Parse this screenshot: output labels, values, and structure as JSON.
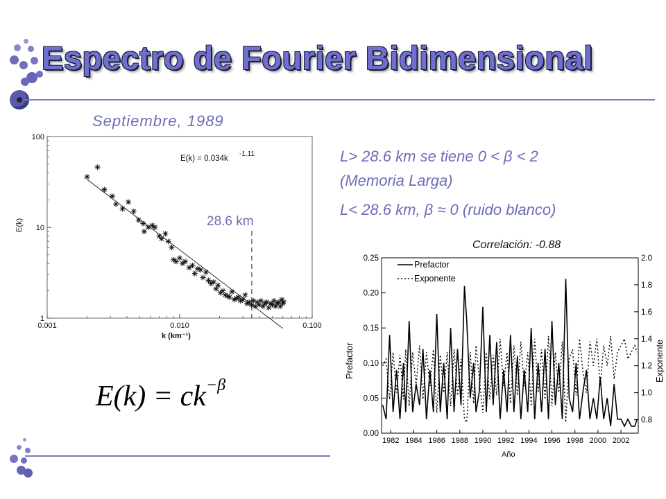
{
  "slide": {
    "title": "Espectro de Fourier Bidimensional",
    "subtitle": "Septiembre, 1989",
    "note1_a": "L> 28.6 km se tiene  0 < β < 2",
    "note1_b": "(Memoria Larga)",
    "note2": "L< 28.6 km, β ≈ 0 (ruido blanco)",
    "correlation": "Correlación: -0.88",
    "formula_main": "E(k) = ck",
    "formula_exp": "−β",
    "colors": {
      "title": "#6f6fd0",
      "accent_text": "#6c6cb8",
      "rule": "#7a7ab8"
    }
  },
  "chart_data": [
    {
      "type": "scatter",
      "scale": "log-log",
      "xlabel": "k (km⁻¹)",
      "ylabel": "E(k)",
      "xlim": [
        0.001,
        0.1
      ],
      "ylim": [
        1,
        100
      ],
      "x_ticks": [
        "0.001",
        "0.010",
        "0.100"
      ],
      "y_ticks": [
        "1",
        "10",
        "100"
      ],
      "fit_label": "E(k) = 0.034k",
      "fit_exponent": "-1.11",
      "fit": {
        "c": 0.034,
        "beta": 1.11
      },
      "cutoff_label": "28.6 km",
      "cutoff_k": 0.035,
      "points": [
        [
          0.002,
          36
        ],
        [
          0.0024,
          46
        ],
        [
          0.0027,
          26
        ],
        [
          0.0031,
          22
        ],
        [
          0.0033,
          18
        ],
        [
          0.0037,
          16
        ],
        [
          0.0041,
          19
        ],
        [
          0.0045,
          15
        ],
        [
          0.0049,
          12
        ],
        [
          0.0053,
          11
        ],
        [
          0.0054,
          9
        ],
        [
          0.0058,
          10
        ],
        [
          0.0062,
          10.5
        ],
        [
          0.0065,
          10
        ],
        [
          0.007,
          8
        ],
        [
          0.0073,
          7.5
        ],
        [
          0.0078,
          8.5
        ],
        [
          0.0082,
          7
        ],
        [
          0.0087,
          6
        ],
        [
          0.009,
          4.4
        ],
        [
          0.0094,
          4.2
        ],
        [
          0.01,
          4.6
        ],
        [
          0.0105,
          4.0
        ],
        [
          0.011,
          4.2
        ],
        [
          0.0118,
          3.6
        ],
        [
          0.0125,
          3.8
        ],
        [
          0.013,
          3.1
        ],
        [
          0.0137,
          3.5
        ],
        [
          0.0144,
          3.4
        ],
        [
          0.015,
          2.8
        ],
        [
          0.0158,
          3.2
        ],
        [
          0.0165,
          2.6
        ],
        [
          0.0172,
          2.4
        ],
        [
          0.018,
          2.5
        ],
        [
          0.0188,
          2.1
        ],
        [
          0.0195,
          2.3
        ],
        [
          0.0203,
          1.9
        ],
        [
          0.0212,
          2.0
        ],
        [
          0.022,
          1.8
        ],
        [
          0.023,
          1.75
        ],
        [
          0.0238,
          1.7
        ],
        [
          0.0248,
          1.95
        ],
        [
          0.0258,
          1.6
        ],
        [
          0.0268,
          1.65
        ],
        [
          0.0278,
          1.7
        ],
        [
          0.0288,
          1.55
        ],
        [
          0.03,
          1.6
        ],
        [
          0.0312,
          1.8
        ],
        [
          0.0322,
          1.45
        ],
        [
          0.0335,
          1.5
        ],
        [
          0.0348,
          1.4
        ],
        [
          0.036,
          1.55
        ],
        [
          0.0372,
          1.35
        ],
        [
          0.0385,
          1.5
        ],
        [
          0.0398,
          1.4
        ],
        [
          0.041,
          1.55
        ],
        [
          0.0425,
          1.35
        ],
        [
          0.044,
          1.45
        ],
        [
          0.0455,
          1.5
        ],
        [
          0.047,
          1.3
        ],
        [
          0.0485,
          1.45
        ],
        [
          0.05,
          1.4
        ],
        [
          0.0515,
          1.55
        ],
        [
          0.053,
          1.35
        ],
        [
          0.0545,
          1.45
        ],
        [
          0.056,
          1.5
        ],
        [
          0.0575,
          1.35
        ],
        [
          0.059,
          1.6
        ],
        [
          0.06,
          1.45
        ],
        [
          0.061,
          1.5
        ]
      ]
    },
    {
      "type": "line",
      "xlabel": "Año",
      "ylabel": "Prefactor",
      "y2label": "Exponente",
      "xlim": [
        1981.2,
        2003.5
      ],
      "ylim": [
        0,
        0.25
      ],
      "y2lim": [
        0.7,
        2.0
      ],
      "x_ticks": [
        "1982",
        "1984",
        "1986",
        "1988",
        "1990",
        "1992",
        "1994",
        "1996",
        "1998",
        "2000",
        "2002"
      ],
      "y_ticks": [
        "0.00",
        "0.05",
        "0.10",
        "0.15",
        "0.20",
        "0.25"
      ],
      "y2_ticks": [
        "0.8",
        "1.0",
        "1.2",
        "1.4",
        "1.6",
        "1.8",
        "2.0"
      ],
      "series": [
        {
          "name": "Prefactor",
          "axis": "left",
          "x": [
            1981.3,
            1981.6,
            1981.9,
            1982.2,
            1982.5,
            1982.8,
            1983.1,
            1983.3,
            1983.6,
            1983.9,
            1984.2,
            1984.5,
            1984.8,
            1985.1,
            1985.4,
            1985.7,
            1986.0,
            1986.3,
            1986.6,
            1986.9,
            1987.2,
            1987.5,
            1987.8,
            1988.1,
            1988.4,
            1988.6,
            1988.9,
            1989.2,
            1989.4,
            1989.7,
            1990.0,
            1990.3,
            1990.6,
            1990.9,
            1991.2,
            1991.5,
            1991.8,
            1992.1,
            1992.4,
            1992.7,
            1993.0,
            1993.3,
            1993.6,
            1993.9,
            1994.2,
            1994.5,
            1994.8,
            1995.1,
            1995.4,
            1995.7,
            1996.0,
            1996.3,
            1996.6,
            1996.9,
            1997.2,
            1997.5,
            1997.8,
            1998.1,
            1998.4,
            1998.7,
            1999.0,
            1999.3,
            1999.6,
            1999.9,
            2000.2,
            2000.5,
            2000.8,
            2001.1,
            2001.4,
            2001.7,
            2002.0,
            2002.3,
            2002.6,
            2002.9,
            2003.2,
            2003.4
          ],
          "values": [
            0.04,
            0.02,
            0.14,
            0.03,
            0.09,
            0.02,
            0.1,
            0.03,
            0.16,
            0.03,
            0.07,
            0.04,
            0.12,
            0.02,
            0.09,
            0.03,
            0.17,
            0.03,
            0.1,
            0.02,
            0.15,
            0.03,
            0.12,
            0.04,
            0.21,
            0.16,
            0.05,
            0.1,
            0.03,
            0.06,
            0.18,
            0.03,
            0.14,
            0.04,
            0.13,
            0.02,
            0.09,
            0.03,
            0.14,
            0.03,
            0.11,
            0.02,
            0.09,
            0.03,
            0.15,
            0.02,
            0.1,
            0.03,
            0.12,
            0.02,
            0.16,
            0.04,
            0.1,
            0.02,
            0.22,
            0.05,
            0.03,
            0.1,
            0.02,
            0.06,
            0.09,
            0.02,
            0.05,
            0.02,
            0.08,
            0.02,
            0.05,
            0.01,
            0.07,
            0.02,
            0.02,
            0.01,
            0.02,
            0.01,
            0.01,
            0.02
          ]
        },
        {
          "name": "Exponente",
          "axis": "right",
          "x": [
            1981.3,
            1981.6,
            1981.9,
            1982.2,
            1982.5,
            1982.8,
            1983.1,
            1983.3,
            1983.6,
            1983.9,
            1984.2,
            1984.5,
            1984.8,
            1985.1,
            1985.4,
            1985.7,
            1986.0,
            1986.3,
            1986.6,
            1986.9,
            1987.2,
            1987.5,
            1987.8,
            1988.1,
            1988.4,
            1988.6,
            1988.9,
            1989.2,
            1989.4,
            1989.7,
            1990.0,
            1990.3,
            1990.6,
            1990.9,
            1991.2,
            1991.5,
            1991.8,
            1992.1,
            1992.4,
            1992.7,
            1993.0,
            1993.3,
            1993.6,
            1993.9,
            1994.2,
            1994.5,
            1994.8,
            1995.1,
            1995.4,
            1995.7,
            1996.0,
            1996.3,
            1996.6,
            1996.9,
            1997.2,
            1997.5,
            1997.8,
            1998.1,
            1998.4,
            1998.7,
            1999.0,
            1999.3,
            1999.6,
            1999.9,
            2000.2,
            2000.5,
            2000.8,
            2001.1,
            2001.4,
            2001.7,
            2002.0,
            2002.3,
            2002.6,
            2002.9,
            2003.2,
            2003.4
          ],
          "values": [
            1.2,
            1.25,
            0.95,
            1.3,
            1.0,
            1.28,
            0.95,
            1.32,
            0.9,
            1.3,
            1.05,
            1.35,
            0.95,
            1.3,
            1.05,
            1.32,
            0.85,
            1.28,
            1.0,
            1.3,
            0.9,
            1.32,
            0.98,
            1.25,
            0.8,
            0.78,
            1.3,
            0.92,
            1.35,
            1.1,
            0.85,
            1.3,
            0.95,
            1.28,
            0.98,
            1.4,
            1.05,
            1.3,
            0.92,
            1.35,
            0.98,
            1.38,
            1.05,
            1.3,
            0.9,
            1.4,
            1.0,
            1.32,
            0.95,
            1.42,
            0.9,
            1.3,
            1.0,
            1.38,
            0.78,
            1.25,
            1.32,
            0.98,
            1.4,
            1.15,
            1.0,
            1.38,
            1.2,
            1.4,
            1.05,
            1.35,
            1.2,
            1.42,
            1.1,
            1.3,
            1.35,
            1.4,
            1.25,
            1.3,
            1.35,
            1.3
          ]
        }
      ]
    }
  ]
}
